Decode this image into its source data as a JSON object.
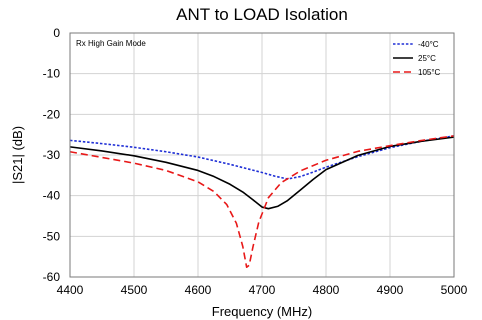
{
  "chart_data": {
    "type": "line",
    "title": "ANT to LOAD Isolation",
    "xlabel": "Frequency (MHz)",
    "ylabel": "|S21| (dB)",
    "xlim": [
      4400,
      5000
    ],
    "ylim": [
      -60,
      0
    ],
    "xticks": [
      4400,
      4500,
      4600,
      4700,
      4800,
      4900,
      5000
    ],
    "yticks": [
      0,
      -10,
      -20,
      -30,
      -40,
      -50,
      -60
    ],
    "grid": true,
    "legend_position": "top-right",
    "annotation": "Rx High Gain Mode",
    "series": [
      {
        "name": "-40°C",
        "color": "#1f2fd6",
        "style": "dotted",
        "x": [
          4400,
          4450,
          4500,
          4550,
          4600,
          4650,
          4700,
          4720,
          4740,
          4760,
          4780,
          4800,
          4850,
          4900,
          4950,
          5000
        ],
        "y": [
          -26.4,
          -27.2,
          -28.1,
          -29.2,
          -30.5,
          -32.3,
          -34.3,
          -35.2,
          -35.9,
          -35.3,
          -34.2,
          -33.0,
          -30.4,
          -28.2,
          -26.6,
          -25.3
        ]
      },
      {
        "name": "25°C",
        "color": "#000000",
        "style": "solid",
        "x": [
          4400,
          4450,
          4500,
          4550,
          4600,
          4625,
          4650,
          4670,
          4685,
          4700,
          4710,
          4725,
          4740,
          4760,
          4780,
          4800,
          4850,
          4900,
          4950,
          5000
        ],
        "y": [
          -28.0,
          -29.0,
          -30.2,
          -31.8,
          -33.8,
          -35.3,
          -37.2,
          -39.1,
          -40.9,
          -42.8,
          -43.2,
          -42.6,
          -41.2,
          -38.6,
          -36.0,
          -33.6,
          -30.1,
          -27.9,
          -26.6,
          -25.6
        ]
      },
      {
        "name": "105°C",
        "color": "#e81818",
        "style": "dashed",
        "x": [
          4400,
          4450,
          4500,
          4550,
          4600,
          4625,
          4645,
          4660,
          4670,
          4676,
          4680,
          4686,
          4695,
          4710,
          4730,
          4760,
          4800,
          4850,
          4900,
          4950,
          5000
        ],
        "y": [
          -29.2,
          -30.6,
          -32.0,
          -33.8,
          -36.6,
          -39.0,
          -42.2,
          -46.8,
          -52.5,
          -57.6,
          -57.1,
          -52.5,
          -46.5,
          -40.5,
          -36.8,
          -33.9,
          -31.3,
          -29.1,
          -27.7,
          -26.4,
          -25.3
        ]
      }
    ]
  }
}
